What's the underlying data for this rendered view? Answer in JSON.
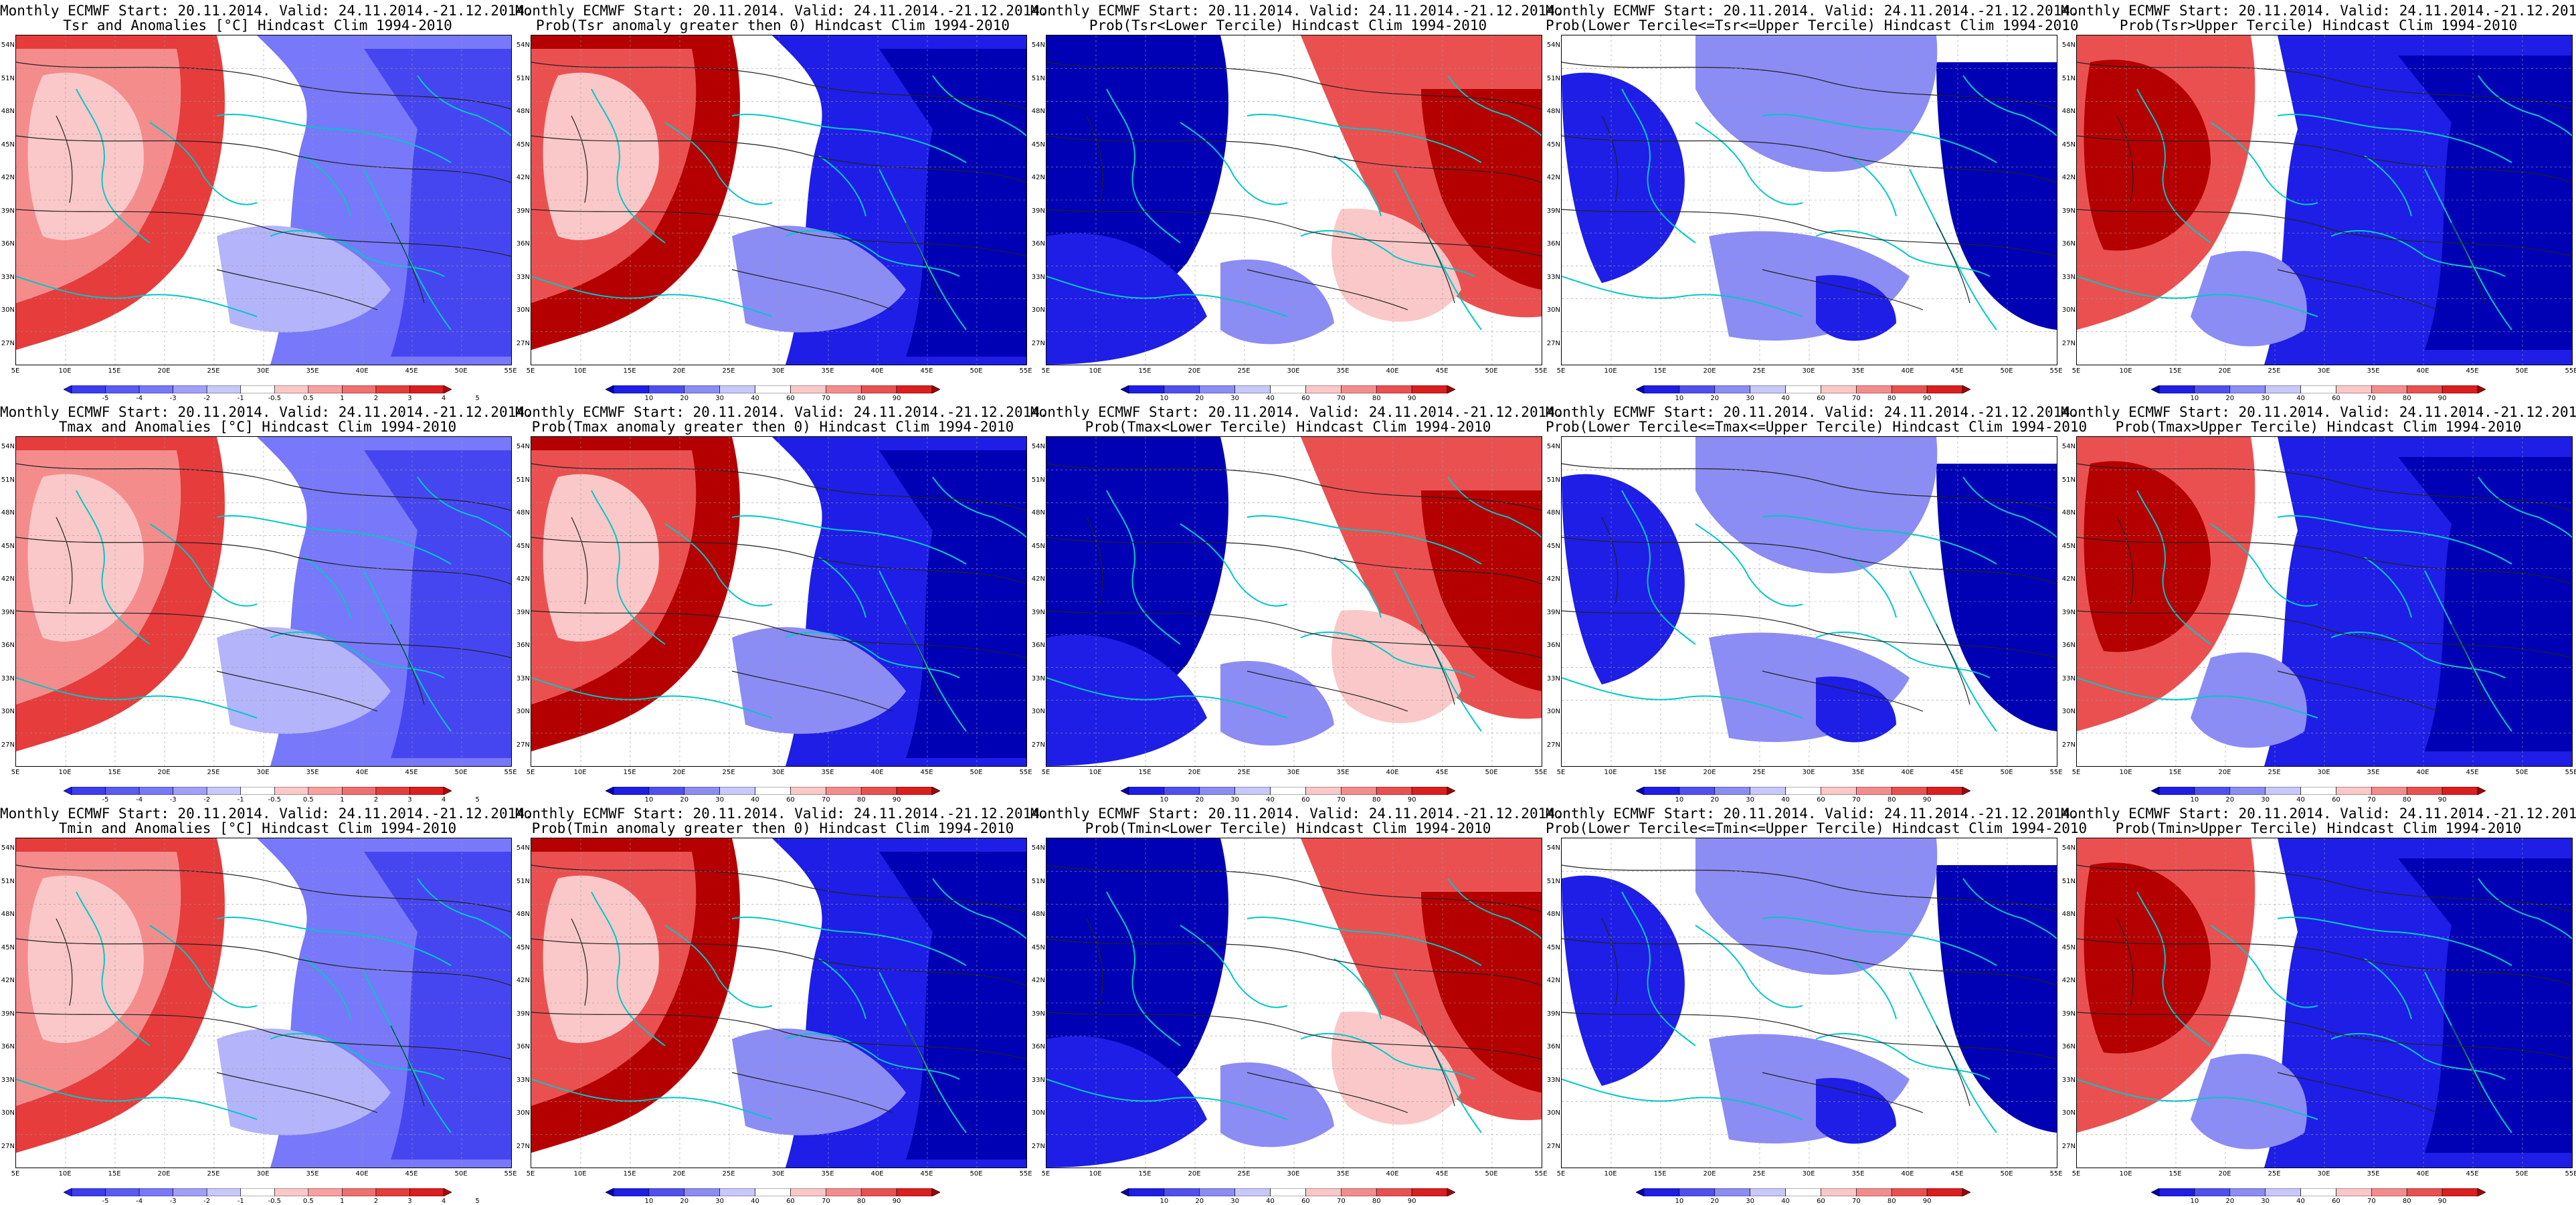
{
  "header_line": "Monthly ECMWF Start: 20.11.2014. Valid: 24.11.2014.-21.12.2014.",
  "lat_ticks": [
    "54N",
    "51N",
    "48N",
    "45N",
    "42N",
    "39N",
    "36N",
    "33N",
    "30N",
    "27N"
  ],
  "lon_ticks": [
    "5E",
    "10E",
    "15E",
    "20E",
    "25E",
    "30E",
    "35E",
    "40E",
    "45E",
    "50E",
    "55E"
  ],
  "anomaly_colorbar": {
    "labels": [
      "-5",
      "-4",
      "-3",
      "-2",
      "-1",
      "-0.5",
      "0.5",
      "1",
      "2",
      "3",
      "4",
      "5"
    ],
    "colors": [
      "#1e1ee6",
      "#3c3cf0",
      "#5a5af5",
      "#7878fa",
      "#a0a0fa",
      "#c8c8fa",
      "#ffffff",
      "#fac8c8",
      "#faa0a0",
      "#f07070",
      "#e63c3c",
      "#dc1e1e",
      "#b40000"
    ]
  },
  "probability_colorbar": {
    "labels": [
      "10",
      "20",
      "30",
      "40",
      "60",
      "70",
      "80",
      "90"
    ],
    "colors": [
      "#0000b4",
      "#1e1ee6",
      "#5050f0",
      "#8c8cf5",
      "#c8c8fa",
      "#ffffff",
      "#fac8c8",
      "#f58c8c",
      "#eb5050",
      "#dc1e1e",
      "#a00000"
    ]
  },
  "panels": [
    {
      "row": 0,
      "col": 0,
      "title2": "Tsr and Anomalies [°C] Hindcast Clim 1994-2010",
      "kind": "anomaly",
      "pattern": "west_warm"
    },
    {
      "row": 0,
      "col": 1,
      "title2": "Prob(Tsr anomaly greater then 0) Hindcast Clim 1994-2010",
      "kind": "prob",
      "pattern": "west_warm"
    },
    {
      "row": 0,
      "col": 2,
      "title2": "Prob(Tsr<Lower Tercile) Hindcast Clim 1994-2010",
      "kind": "prob",
      "pattern": "east_warm"
    },
    {
      "row": 0,
      "col": 3,
      "title2": "Prob(Lower Tercile<=Tsr<=Upper Tercile) Hindcast Clim 1994-2010",
      "kind": "prob",
      "pattern": "mid_blue"
    },
    {
      "row": 0,
      "col": 4,
      "title2": "Prob(Tsr>Upper Tercile) Hindcast Clim 1994-2010",
      "kind": "prob",
      "pattern": "west_hot"
    },
    {
      "row": 1,
      "col": 0,
      "title2": "Tmax and Anomalies [°C] Hindcast Clim 1994-2010",
      "kind": "anomaly",
      "pattern": "west_warm"
    },
    {
      "row": 1,
      "col": 1,
      "title2": "Prob(Tmax anomaly greater then 0) Hindcast Clim 1994-2010",
      "kind": "prob",
      "pattern": "west_warm"
    },
    {
      "row": 1,
      "col": 2,
      "title2": "Prob(Tmax<Lower Tercile) Hindcast Clim 1994-2010",
      "kind": "prob",
      "pattern": "east_warm"
    },
    {
      "row": 1,
      "col": 3,
      "title2": "Prob(Lower Tercile<=Tmax<=Upper Tercile) Hindcast Clim 1994-2010",
      "kind": "prob",
      "pattern": "mid_blue"
    },
    {
      "row": 1,
      "col": 4,
      "title2": "Prob(Tmax>Upper Tercile) Hindcast Clim 1994-2010",
      "kind": "prob",
      "pattern": "west_hot"
    },
    {
      "row": 2,
      "col": 0,
      "title2": "Tmin and Anomalies [°C] Hindcast Clim 1994-2010",
      "kind": "anomaly",
      "pattern": "west_warm"
    },
    {
      "row": 2,
      "col": 1,
      "title2": "Prob(Tmin anomaly greater then 0) Hindcast Clim 1994-2010",
      "kind": "prob",
      "pattern": "west_warm"
    },
    {
      "row": 2,
      "col": 2,
      "title2": "Prob(Tmin<Lower Tercile) Hindcast Clim 1994-2010",
      "kind": "prob",
      "pattern": "east_warm"
    },
    {
      "row": 2,
      "col": 3,
      "title2": "Prob(Lower Tercile<=Tmin<=Upper Tercile) Hindcast Clim 1994-2010",
      "kind": "prob",
      "pattern": "mid_blue"
    },
    {
      "row": 2,
      "col": 4,
      "title2": "Prob(Tmin>Upper Tercile) Hindcast Clim 1994-2010",
      "kind": "prob",
      "pattern": "west_hot"
    }
  ]
}
